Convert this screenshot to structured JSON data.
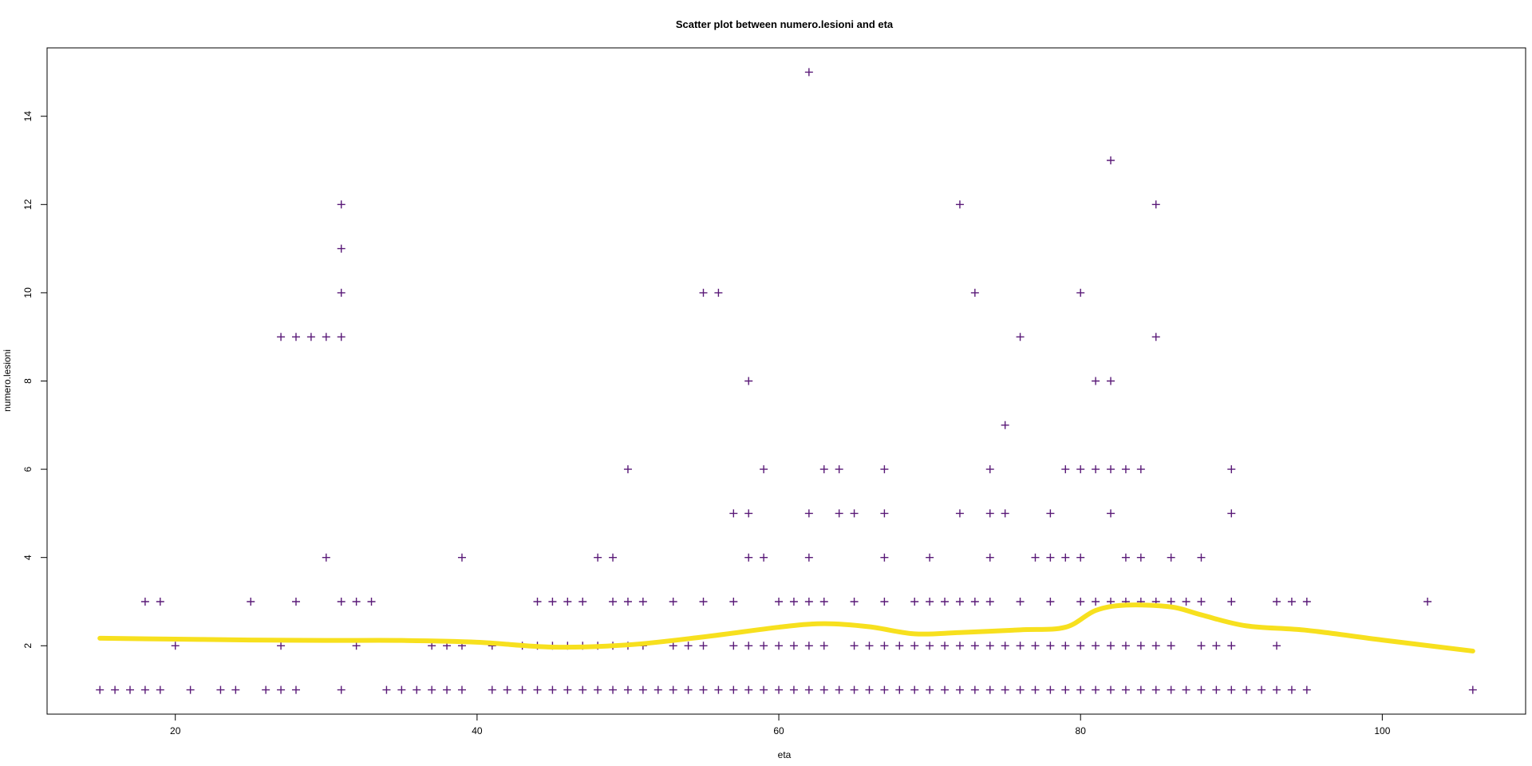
{
  "chart_data": {
    "type": "scatter",
    "title": "Scatter plot between numero.lesioni and eta",
    "xlabel": "eta",
    "ylabel": "numero.lesioni",
    "xlim": [
      11.5,
      109.5
    ],
    "ylim": [
      0.45,
      15.55
    ],
    "x_ticks": [
      20,
      40,
      60,
      80,
      100
    ],
    "y_ticks": [
      2,
      4,
      6,
      8,
      10,
      12,
      14
    ],
    "grid": false,
    "colors": {
      "points": "#5a1a78",
      "smooth": "#f7e01e",
      "axes": "#000000"
    },
    "point_marker": "+",
    "series": [
      {
        "points": [
          [
            15,
            1
          ],
          [
            16,
            1
          ],
          [
            17,
            1
          ],
          [
            18,
            1
          ],
          [
            19,
            1
          ],
          [
            21,
            1
          ],
          [
            23,
            1
          ],
          [
            24,
            1
          ],
          [
            26,
            1
          ],
          [
            27,
            1
          ],
          [
            28,
            1
          ],
          [
            31,
            1
          ],
          [
            34,
            1
          ],
          [
            35,
            1
          ],
          [
            36,
            1
          ],
          [
            37,
            1
          ],
          [
            38,
            1
          ],
          [
            39,
            1
          ],
          [
            41,
            1
          ],
          [
            42,
            1
          ],
          [
            43,
            1
          ],
          [
            44,
            1
          ],
          [
            45,
            1
          ],
          [
            46,
            1
          ],
          [
            47,
            1
          ],
          [
            48,
            1
          ],
          [
            49,
            1
          ],
          [
            50,
            1
          ],
          [
            51,
            1
          ],
          [
            52,
            1
          ],
          [
            53,
            1
          ],
          [
            54,
            1
          ],
          [
            55,
            1
          ],
          [
            56,
            1
          ],
          [
            57,
            1
          ],
          [
            58,
            1
          ],
          [
            59,
            1
          ],
          [
            60,
            1
          ],
          [
            61,
            1
          ],
          [
            62,
            1
          ],
          [
            63,
            1
          ],
          [
            64,
            1
          ],
          [
            65,
            1
          ],
          [
            66,
            1
          ],
          [
            67,
            1
          ],
          [
            68,
            1
          ],
          [
            69,
            1
          ],
          [
            70,
            1
          ],
          [
            71,
            1
          ],
          [
            72,
            1
          ],
          [
            73,
            1
          ],
          [
            74,
            1
          ],
          [
            75,
            1
          ],
          [
            76,
            1
          ],
          [
            77,
            1
          ],
          [
            78,
            1
          ],
          [
            79,
            1
          ],
          [
            80,
            1
          ],
          [
            81,
            1
          ],
          [
            82,
            1
          ],
          [
            83,
            1
          ],
          [
            84,
            1
          ],
          [
            85,
            1
          ],
          [
            86,
            1
          ],
          [
            87,
            1
          ],
          [
            88,
            1
          ],
          [
            89,
            1
          ],
          [
            90,
            1
          ],
          [
            91,
            1
          ],
          [
            92,
            1
          ],
          [
            93,
            1
          ],
          [
            94,
            1
          ],
          [
            95,
            1
          ],
          [
            106,
            1
          ],
          [
            20,
            2
          ],
          [
            27,
            2
          ],
          [
            32,
            2
          ],
          [
            37,
            2
          ],
          [
            38,
            2
          ],
          [
            39,
            2
          ],
          [
            41,
            2
          ],
          [
            43,
            2
          ],
          [
            44,
            2
          ],
          [
            45,
            2
          ],
          [
            46,
            2
          ],
          [
            47,
            2
          ],
          [
            48,
            2
          ],
          [
            49,
            2
          ],
          [
            50,
            2
          ],
          [
            51,
            2
          ],
          [
            53,
            2
          ],
          [
            54,
            2
          ],
          [
            55,
            2
          ],
          [
            57,
            2
          ],
          [
            58,
            2
          ],
          [
            59,
            2
          ],
          [
            60,
            2
          ],
          [
            61,
            2
          ],
          [
            62,
            2
          ],
          [
            63,
            2
          ],
          [
            65,
            2
          ],
          [
            66,
            2
          ],
          [
            67,
            2
          ],
          [
            68,
            2
          ],
          [
            69,
            2
          ],
          [
            70,
            2
          ],
          [
            71,
            2
          ],
          [
            72,
            2
          ],
          [
            73,
            2
          ],
          [
            74,
            2
          ],
          [
            75,
            2
          ],
          [
            76,
            2
          ],
          [
            77,
            2
          ],
          [
            78,
            2
          ],
          [
            79,
            2
          ],
          [
            80,
            2
          ],
          [
            81,
            2
          ],
          [
            82,
            2
          ],
          [
            83,
            2
          ],
          [
            84,
            2
          ],
          [
            85,
            2
          ],
          [
            86,
            2
          ],
          [
            88,
            2
          ],
          [
            89,
            2
          ],
          [
            90,
            2
          ],
          [
            93,
            2
          ],
          [
            18,
            3
          ],
          [
            19,
            3
          ],
          [
            25,
            3
          ],
          [
            28,
            3
          ],
          [
            31,
            3
          ],
          [
            32,
            3
          ],
          [
            33,
            3
          ],
          [
            44,
            3
          ],
          [
            45,
            3
          ],
          [
            46,
            3
          ],
          [
            47,
            3
          ],
          [
            49,
            3
          ],
          [
            50,
            3
          ],
          [
            51,
            3
          ],
          [
            53,
            3
          ],
          [
            55,
            3
          ],
          [
            57,
            3
          ],
          [
            60,
            3
          ],
          [
            61,
            3
          ],
          [
            62,
            3
          ],
          [
            63,
            3
          ],
          [
            65,
            3
          ],
          [
            67,
            3
          ],
          [
            69,
            3
          ],
          [
            70,
            3
          ],
          [
            71,
            3
          ],
          [
            72,
            3
          ],
          [
            73,
            3
          ],
          [
            74,
            3
          ],
          [
            76,
            3
          ],
          [
            78,
            3
          ],
          [
            80,
            3
          ],
          [
            81,
            3
          ],
          [
            82,
            3
          ],
          [
            83,
            3
          ],
          [
            84,
            3
          ],
          [
            85,
            3
          ],
          [
            86,
            3
          ],
          [
            87,
            3
          ],
          [
            88,
            3
          ],
          [
            90,
            3
          ],
          [
            93,
            3
          ],
          [
            94,
            3
          ],
          [
            95,
            3
          ],
          [
            103,
            3
          ],
          [
            30,
            4
          ],
          [
            39,
            4
          ],
          [
            48,
            4
          ],
          [
            49,
            4
          ],
          [
            58,
            4
          ],
          [
            59,
            4
          ],
          [
            62,
            4
          ],
          [
            67,
            4
          ],
          [
            70,
            4
          ],
          [
            74,
            4
          ],
          [
            77,
            4
          ],
          [
            78,
            4
          ],
          [
            79,
            4
          ],
          [
            80,
            4
          ],
          [
            83,
            4
          ],
          [
            84,
            4
          ],
          [
            86,
            4
          ],
          [
            88,
            4
          ],
          [
            57,
            5
          ],
          [
            58,
            5
          ],
          [
            62,
            5
          ],
          [
            64,
            5
          ],
          [
            65,
            5
          ],
          [
            67,
            5
          ],
          [
            72,
            5
          ],
          [
            74,
            5
          ],
          [
            75,
            5
          ],
          [
            78,
            5
          ],
          [
            82,
            5
          ],
          [
            90,
            5
          ],
          [
            50,
            6
          ],
          [
            59,
            6
          ],
          [
            63,
            6
          ],
          [
            64,
            6
          ],
          [
            67,
            6
          ],
          [
            74,
            6
          ],
          [
            79,
            6
          ],
          [
            80,
            6
          ],
          [
            81,
            6
          ],
          [
            82,
            6
          ],
          [
            83,
            6
          ],
          [
            84,
            6
          ],
          [
            90,
            6
          ],
          [
            75,
            7
          ],
          [
            58,
            8
          ],
          [
            81,
            8
          ],
          [
            82,
            8
          ],
          [
            27,
            9
          ],
          [
            28,
            9
          ],
          [
            29,
            9
          ],
          [
            30,
            9
          ],
          [
            31,
            9
          ],
          [
            76,
            9
          ],
          [
            85,
            9
          ],
          [
            31,
            10
          ],
          [
            55,
            10
          ],
          [
            56,
            10
          ],
          [
            73,
            10
          ],
          [
            80,
            10
          ],
          [
            31,
            11
          ],
          [
            31,
            12
          ],
          [
            72,
            12
          ],
          [
            85,
            12
          ],
          [
            82,
            13
          ],
          [
            62,
            15
          ]
        ]
      }
    ],
    "smooth_line": [
      [
        15,
        2.17
      ],
      [
        20,
        2.15
      ],
      [
        25,
        2.13
      ],
      [
        30,
        2.12
      ],
      [
        35,
        2.12
      ],
      [
        40,
        2.08
      ],
      [
        45,
        1.97
      ],
      [
        50,
        2.02
      ],
      [
        55,
        2.2
      ],
      [
        60,
        2.42
      ],
      [
        63,
        2.5
      ],
      [
        66,
        2.43
      ],
      [
        69,
        2.27
      ],
      [
        72,
        2.3
      ],
      [
        76,
        2.36
      ],
      [
        79,
        2.42
      ],
      [
        81,
        2.8
      ],
      [
        83,
        2.92
      ],
      [
        86,
        2.88
      ],
      [
        88,
        2.7
      ],
      [
        91,
        2.45
      ],
      [
        95,
        2.35
      ],
      [
        100,
        2.13
      ],
      [
        106,
        1.88
      ]
    ]
  }
}
